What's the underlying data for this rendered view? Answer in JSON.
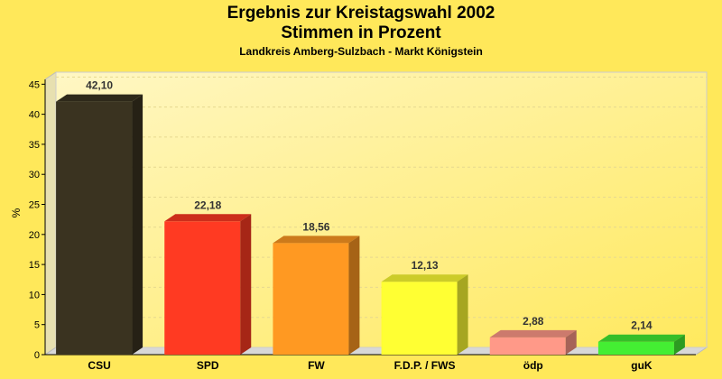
{
  "chart_data": {
    "type": "bar",
    "title": "Ergebnis zur Kreistagswahl 2002",
    "subtitle": "Stimmen in Prozent",
    "subtitle2": "Landkreis Amberg-Sulzbach - Markt Königstein",
    "ylabel": "%",
    "xlabel": "",
    "ylim": [
      0,
      47
    ],
    "yticks": [
      "0",
      "5",
      "10",
      "15",
      "20",
      "25",
      "30",
      "35",
      "40",
      "45"
    ],
    "grid": true,
    "categories": [
      "CSU",
      "SPD",
      "FW",
      "F.D.P. / FWS",
      "ödp",
      "guK"
    ],
    "values": [
      42.1,
      22.18,
      18.56,
      12.13,
      2.88,
      2.14
    ],
    "value_labels": [
      "42,10",
      "22,18",
      "18,56",
      "12,13",
      "2,88",
      "2,14"
    ],
    "colors": [
      "#3a3320",
      "#ff3a22",
      "#ff9922",
      "#ffff33",
      "#ff9988",
      "#44ee33"
    ]
  }
}
